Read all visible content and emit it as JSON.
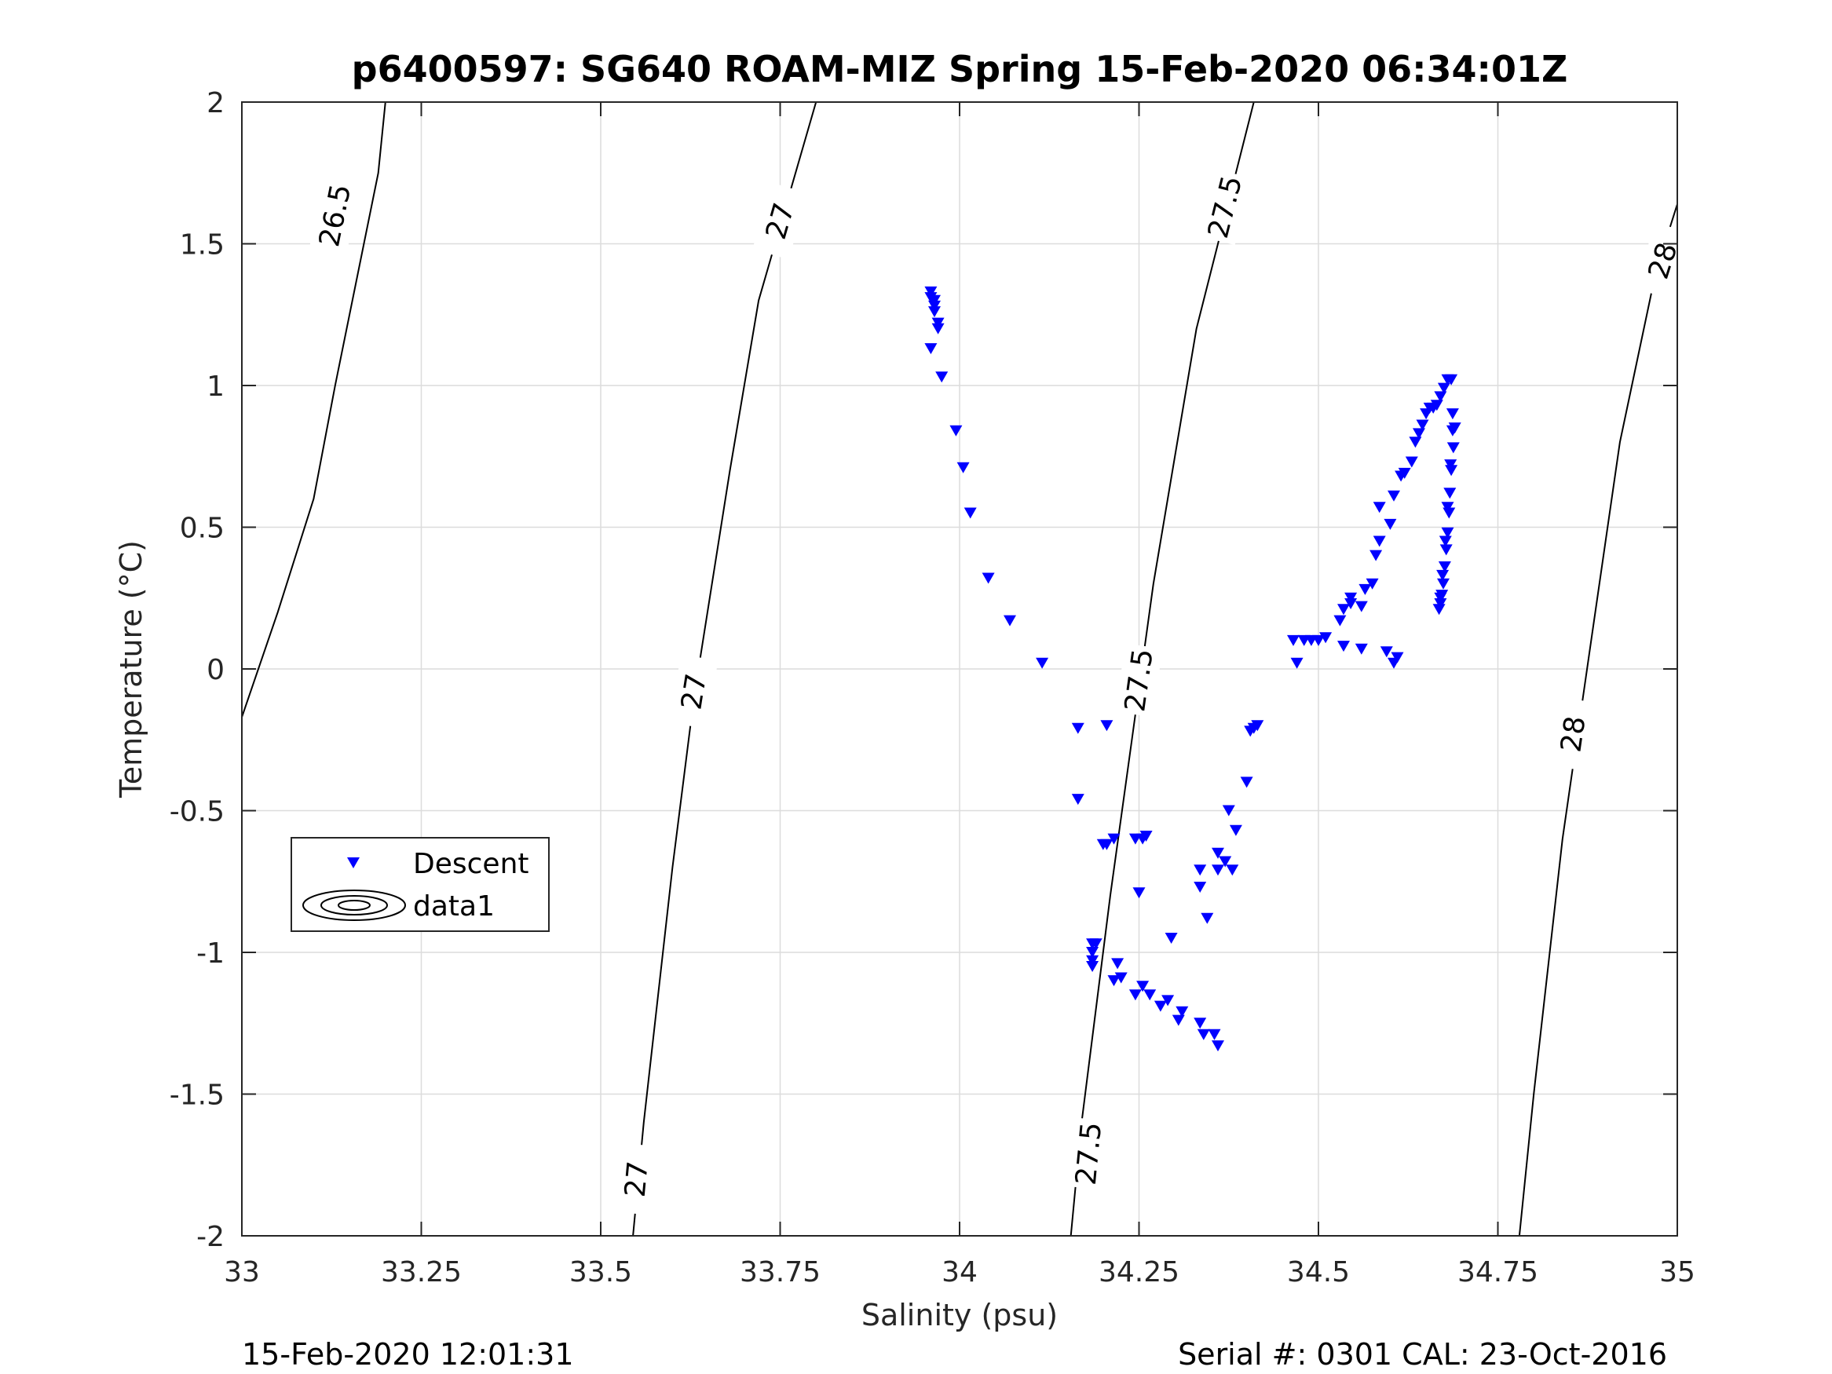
{
  "chart_data": {
    "type": "scatter",
    "title": "p6400597: SG640 ROAM-MIZ Spring 15-Feb-2020 06:34:01Z",
    "xlabel": "Salinity (psu)",
    "ylabel": "Temperature (°C)",
    "xlim": [
      33,
      35
    ],
    "ylim": [
      -2,
      2
    ],
    "xticks": [
      33,
      33.25,
      33.5,
      33.75,
      34,
      34.25,
      34.5,
      34.75,
      35
    ],
    "xtick_labels": [
      "33",
      "33.25",
      "33.5",
      "33.75",
      "34",
      "34.25",
      "34.5",
      "34.75",
      "35"
    ],
    "yticks": [
      -2,
      -1.5,
      -1,
      -0.5,
      0,
      0.5,
      1,
      1.5,
      2
    ],
    "ytick_labels": [
      "-2",
      "-1.5",
      "-1",
      "-0.5",
      "0",
      "0.5",
      "1",
      "1.5",
      "2"
    ],
    "grid": true,
    "legend_position": "left-middle",
    "legend": [
      "Descent",
      "data1"
    ],
    "marker_color": "#0000ff",
    "footer_left": "15-Feb-2020 12:01:31",
    "footer_right": "Serial #: 0301  CAL: 23-Oct-2016",
    "isopycnals": [
      {
        "level": "26.5",
        "points": [
          [
            33.0,
            -0.17
          ],
          [
            33.05,
            0.2
          ],
          [
            33.1,
            0.6
          ],
          [
            33.13,
            1.0
          ],
          [
            33.17,
            1.5
          ],
          [
            33.19,
            1.75
          ],
          [
            33.2,
            2.0
          ]
        ],
        "labels": [
          {
            "s": 33.13,
            "t": 1.6
          }
        ]
      },
      {
        "level": "27",
        "points": [
          [
            33.545,
            -2.0
          ],
          [
            33.56,
            -1.6
          ],
          [
            33.6,
            -0.7
          ],
          [
            33.63,
            -0.1
          ],
          [
            33.68,
            0.7
          ],
          [
            33.72,
            1.3
          ],
          [
            33.8,
            2.0
          ]
        ],
        "labels": [
          {
            "s": 33.55,
            "t": -1.8
          },
          {
            "s": 33.63,
            "t": -0.08
          },
          {
            "s": 33.75,
            "t": 1.58
          }
        ]
      },
      {
        "level": "27.5",
        "points": [
          [
            34.155,
            -2.0
          ],
          [
            34.17,
            -1.6
          ],
          [
            34.21,
            -0.8
          ],
          [
            34.24,
            -0.25
          ],
          [
            34.27,
            0.3
          ],
          [
            34.33,
            1.2
          ],
          [
            34.41,
            2.0
          ]
        ],
        "labels": [
          {
            "s": 34.18,
            "t": -1.71
          },
          {
            "s": 34.25,
            "t": -0.04
          },
          {
            "s": 34.37,
            "t": 1.63
          }
        ]
      },
      {
        "level": "28",
        "points": [
          [
            34.78,
            -2.0
          ],
          [
            34.8,
            -1.5
          ],
          [
            34.84,
            -0.6
          ],
          [
            34.88,
            0.1
          ],
          [
            34.92,
            0.8
          ],
          [
            34.97,
            1.4
          ],
          [
            35.0,
            1.64
          ]
        ],
        "labels": [
          {
            "s": 34.855,
            "t": -0.23
          },
          {
            "s": 34.98,
            "t": 1.44
          }
        ]
      }
    ],
    "series": [
      {
        "name": "Descent",
        "marker": "triangle-down",
        "points": [
          [
            33.96,
            1.33
          ],
          [
            33.96,
            1.31
          ],
          [
            33.965,
            1.3
          ],
          [
            33.965,
            1.28
          ],
          [
            33.965,
            1.26
          ],
          [
            33.97,
            1.22
          ],
          [
            33.97,
            1.2
          ],
          [
            33.96,
            1.13
          ],
          [
            33.975,
            1.03
          ],
          [
            33.995,
            0.84
          ],
          [
            34.005,
            0.71
          ],
          [
            34.015,
            0.55
          ],
          [
            34.04,
            0.32
          ],
          [
            34.07,
            0.17
          ],
          [
            34.115,
            0.02
          ],
          [
            34.165,
            -0.21
          ],
          [
            34.205,
            -0.2
          ],
          [
            34.165,
            -0.46
          ],
          [
            34.2,
            -0.62
          ],
          [
            34.205,
            -0.62
          ],
          [
            34.215,
            -0.6
          ],
          [
            34.245,
            -0.6
          ],
          [
            34.255,
            -0.6
          ],
          [
            34.26,
            -0.59
          ],
          [
            34.25,
            -0.79
          ],
          [
            34.185,
            -0.97
          ],
          [
            34.19,
            -0.97
          ],
          [
            34.185,
            -1.0
          ],
          [
            34.185,
            -1.03
          ],
          [
            34.185,
            -1.05
          ],
          [
            34.215,
            -1.1
          ],
          [
            34.22,
            -1.04
          ],
          [
            34.225,
            -1.09
          ],
          [
            34.245,
            -1.15
          ],
          [
            34.255,
            -1.12
          ],
          [
            34.265,
            -1.15
          ],
          [
            34.28,
            -1.19
          ],
          [
            34.29,
            -1.17
          ],
          [
            34.295,
            -0.95
          ],
          [
            34.305,
            -1.24
          ],
          [
            34.31,
            -1.21
          ],
          [
            34.335,
            -1.25
          ],
          [
            34.34,
            -1.29
          ],
          [
            34.355,
            -1.29
          ],
          [
            34.36,
            -1.33
          ],
          [
            34.335,
            -0.71
          ],
          [
            34.335,
            -0.77
          ],
          [
            34.345,
            -0.88
          ],
          [
            34.36,
            -0.65
          ],
          [
            34.36,
            -0.71
          ],
          [
            34.37,
            -0.68
          ],
          [
            34.375,
            -0.5
          ],
          [
            34.38,
            -0.71
          ],
          [
            34.385,
            -0.57
          ],
          [
            34.4,
            -0.4
          ],
          [
            34.405,
            -0.22
          ],
          [
            34.41,
            -0.21
          ],
          [
            34.415,
            -0.2
          ],
          [
            34.465,
            0.1
          ],
          [
            34.47,
            0.02
          ],
          [
            34.48,
            0.1
          ],
          [
            34.49,
            0.1
          ],
          [
            34.5,
            0.1
          ],
          [
            34.51,
            0.11
          ],
          [
            34.535,
            0.08
          ],
          [
            34.53,
            0.17
          ],
          [
            34.535,
            0.21
          ],
          [
            34.545,
            0.23
          ],
          [
            34.545,
            0.25
          ],
          [
            34.56,
            0.22
          ],
          [
            34.565,
            0.28
          ],
          [
            34.575,
            0.3
          ],
          [
            34.56,
            0.07
          ],
          [
            34.595,
            0.06
          ],
          [
            34.605,
            0.02
          ],
          [
            34.61,
            0.04
          ],
          [
            34.58,
            0.4
          ],
          [
            34.585,
            0.45
          ],
          [
            34.585,
            0.57
          ],
          [
            34.6,
            0.51
          ],
          [
            34.605,
            0.61
          ],
          [
            34.615,
            0.68
          ],
          [
            34.62,
            0.69
          ],
          [
            34.63,
            0.73
          ],
          [
            34.635,
            0.8
          ],
          [
            34.64,
            0.83
          ],
          [
            34.645,
            0.86
          ],
          [
            34.65,
            0.9
          ],
          [
            34.655,
            0.92
          ],
          [
            34.66,
            0.92
          ],
          [
            34.665,
            0.93
          ],
          [
            34.67,
            0.96
          ],
          [
            34.675,
            0.99
          ],
          [
            34.68,
            1.02
          ],
          [
            34.685,
            1.02
          ],
          [
            34.687,
            0.9
          ],
          [
            34.69,
            0.85
          ],
          [
            34.688,
            0.78
          ],
          [
            34.685,
            0.7
          ],
          [
            34.683,
            0.62
          ],
          [
            34.682,
            0.55
          ],
          [
            34.68,
            0.48
          ],
          [
            34.678,
            0.42
          ],
          [
            34.676,
            0.36
          ],
          [
            34.674,
            0.3
          ],
          [
            34.672,
            0.26
          ],
          [
            34.67,
            0.23
          ],
          [
            34.668,
            0.21
          ],
          [
            34.67,
            0.25
          ],
          [
            34.673,
            0.33
          ],
          [
            34.677,
            0.45
          ],
          [
            34.68,
            0.57
          ],
          [
            34.684,
            0.72
          ],
          [
            34.687,
            0.84
          ]
        ]
      }
    ]
  }
}
